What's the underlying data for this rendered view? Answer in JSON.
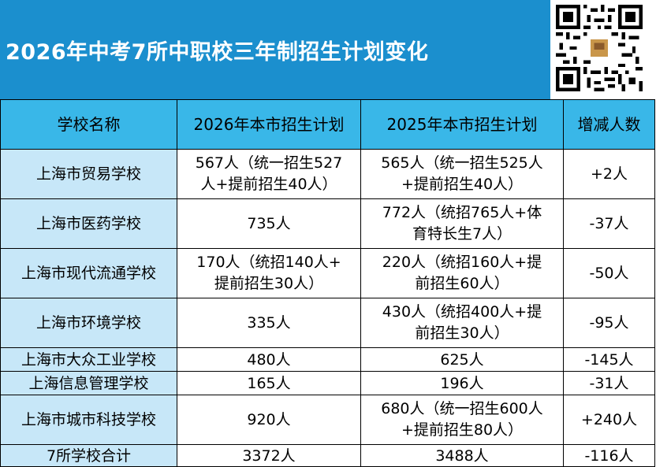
{
  "header": {
    "title": "2026年中考7所中职校三年制招生计划变化",
    "qr_icon": "qr-code-icon"
  },
  "colors": {
    "banner": "#1b8fce",
    "header_row": "#39b7e8",
    "name_column": "#c7e7f8"
  },
  "table": {
    "columns": [
      "学校名称",
      "2026年本市招生计划",
      "2025年本市招生计划",
      "增减人数"
    ],
    "rows": [
      {
        "school": "上海市贸易学校",
        "plan2026_1": "567人（统一招生527",
        "plan2026_2": "人+提前招生40人）",
        "plan2025_1": "565人（统一招生525人",
        "plan2025_2": "+提前招生40人）",
        "change": "+2人"
      },
      {
        "school": "上海市医药学校",
        "plan2026_1": "735人",
        "plan2026_2": "",
        "plan2025_1": "772人（统招765人+体",
        "plan2025_2": "育特长生7人）",
        "change": "-37人"
      },
      {
        "school": "上海市现代流通学校",
        "plan2026_1": "170人（统招140人+",
        "plan2026_2": "提前招生30人）",
        "plan2025_1": "220人（统招160人+提",
        "plan2025_2": "前招生60人）",
        "change": "-50人"
      },
      {
        "school": "上海市环境学校",
        "plan2026_1": "335人",
        "plan2026_2": "",
        "plan2025_1": "430人（统招400人+提",
        "plan2025_2": "前招生30人）",
        "change": "-95人"
      },
      {
        "school": "上海市大众工业学校",
        "plan2026_1": "480人",
        "plan2026_2": "",
        "plan2025_1": "625人",
        "plan2025_2": "",
        "change": "-145人"
      },
      {
        "school": "上海信息管理学校",
        "plan2026_1": "165人",
        "plan2026_2": "",
        "plan2025_1": "196人",
        "plan2025_2": "",
        "change": "-31人"
      },
      {
        "school": "上海市城市科技学校",
        "plan2026_1": "920人",
        "plan2026_2": "",
        "plan2025_1": "680人（统一招生600人",
        "plan2025_2": "+提前招生80人）",
        "change": "+240人"
      },
      {
        "school": "7所学校合计",
        "plan2026_1": "3372人",
        "plan2026_2": "",
        "plan2025_1": "3488人",
        "plan2025_2": "",
        "change": "-116人"
      }
    ]
  }
}
